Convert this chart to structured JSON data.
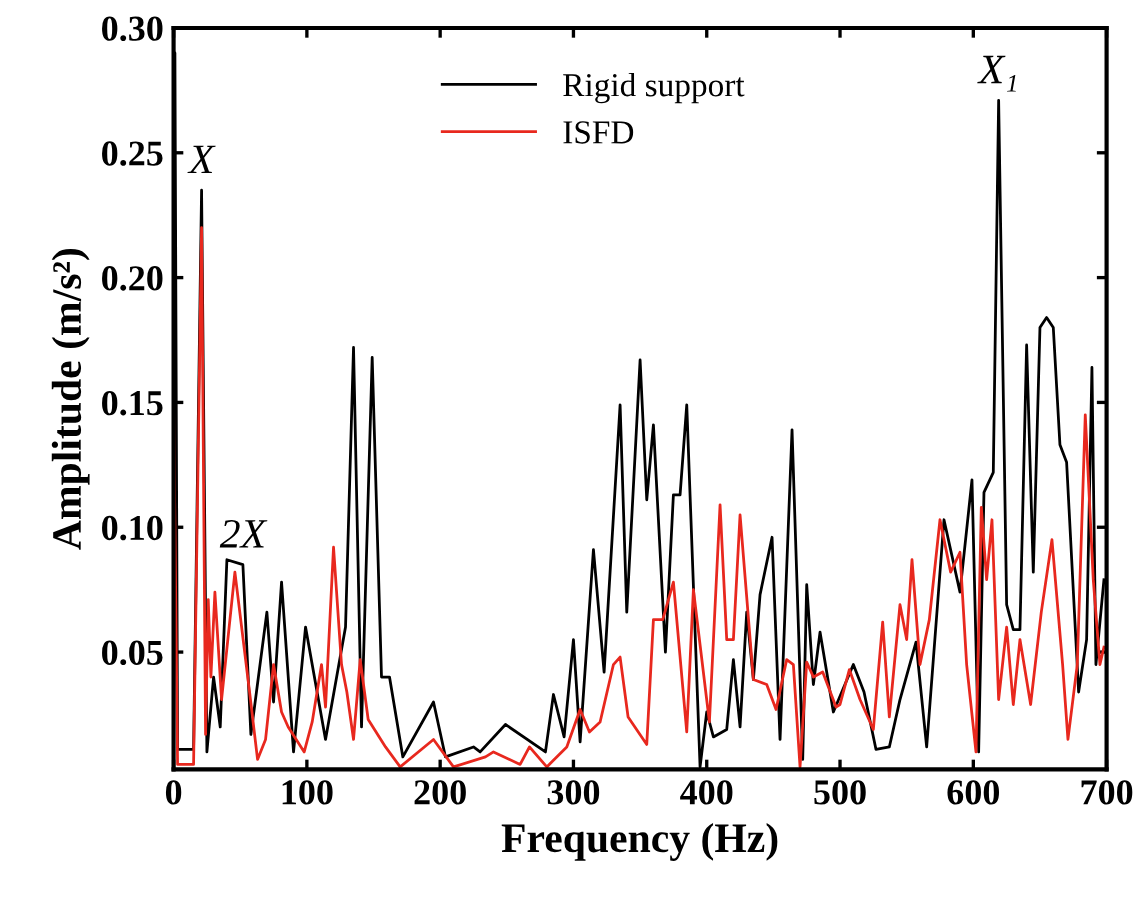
{
  "chart_data": {
    "type": "line",
    "xlabel": "Frequency (Hz)",
    "ylabel": "Amplitude (m/s²)",
    "xlim": [
      0,
      700
    ],
    "ylim": [
      0.003,
      0.3
    ],
    "xticks": [
      0,
      100,
      200,
      300,
      400,
      500,
      600,
      700
    ],
    "yticks": [
      0.05,
      {
        "value": 0.1,
        "label": "0.10"
      },
      0.15,
      {
        "value": 0.2,
        "label": "0.20"
      },
      0.25,
      {
        "value": 0.3,
        "label": "0.30"
      }
    ],
    "grid": false,
    "legend": "top",
    "marker": "none",
    "line_style": "solid",
    "annotations": [
      {
        "text": "X",
        "x": 21,
        "y": 0.235
      },
      {
        "text": "2X",
        "x": 52,
        "y": 0.085
      },
      {
        "text": "X₁",
        "x": 619,
        "y": 0.271
      }
    ],
    "series": [
      {
        "name": "Rigid support",
        "color": "#000000",
        "x": [
          0,
          1,
          3,
          15,
          21,
          25,
          30,
          35,
          40,
          52,
          58,
          70,
          75,
          81,
          90,
          99,
          114,
          129,
          135,
          141,
          149,
          156,
          162,
          172,
          195,
          204,
          225,
          230,
          249,
          279,
          285,
          293,
          300,
          305,
          315,
          323,
          335,
          340,
          350,
          355,
          360,
          369,
          375,
          380,
          385,
          395,
          400,
          405,
          415,
          420,
          425,
          430,
          435,
          440,
          449,
          455,
          464,
          472,
          475,
          480,
          485,
          495,
          510,
          518,
          527,
          537,
          545,
          557,
          565,
          578,
          590,
          599,
          604,
          608,
          615,
          619,
          625,
          630,
          635,
          640,
          645,
          650,
          655,
          660,
          665,
          670,
          679,
          685,
          689,
          692,
          698
        ],
        "values": [
          0.1,
          0.29,
          0.011,
          0.011,
          0.235,
          0.01,
          0.04,
          0.02,
          0.087,
          0.085,
          0.017,
          0.066,
          0.03,
          0.078,
          0.01,
          0.06,
          0.015,
          0.06,
          0.172,
          0.02,
          0.168,
          0.04,
          0.04,
          0.008,
          0.03,
          0.008,
          0.012,
          0.01,
          0.021,
          0.01,
          0.033,
          0.016,
          0.055,
          0.014,
          0.091,
          0.042,
          0.149,
          0.066,
          0.167,
          0.111,
          0.141,
          0.05,
          0.113,
          0.113,
          0.149,
          0.004,
          0.026,
          0.016,
          0.019,
          0.047,
          0.02,
          0.066,
          0.039,
          0.073,
          0.096,
          0.015,
          0.139,
          0.007,
          0.077,
          0.037,
          0.058,
          0.026,
          0.045,
          0.034,
          0.011,
          0.012,
          0.031,
          0.054,
          0.012,
          0.103,
          0.074,
          0.119,
          0.01,
          0.114,
          0.122,
          0.271,
          0.069,
          0.059,
          0.059,
          0.173,
          0.082,
          0.18,
          0.184,
          0.18,
          0.133,
          0.126,
          0.034,
          0.055,
          0.164,
          0.045,
          0.079
        ]
      },
      {
        "name": "ISFD",
        "color": "#e8281e",
        "x": [
          0,
          3,
          15,
          21,
          24,
          26,
          28,
          31,
          36,
          46,
          57,
          63,
          69,
          75,
          81,
          86,
          98,
          104,
          111,
          114,
          120,
          126,
          130,
          135,
          140,
          146,
          159,
          170,
          195,
          210,
          234,
          240,
          260,
          267,
          280,
          295,
          305,
          312,
          320,
          330,
          335,
          341,
          355,
          360,
          367,
          375,
          385,
          390,
          402,
          410,
          415,
          420,
          425,
          435,
          445,
          452,
          460,
          465,
          470,
          475,
          480,
          487,
          497,
          500,
          507,
          515,
          525,
          532,
          537,
          545,
          550,
          554,
          560,
          567,
          575,
          583,
          590,
          595,
          602,
          606,
          610,
          614,
          619,
          625,
          630,
          635,
          643,
          651,
          659,
          667,
          671,
          678,
          684,
          690,
          695,
          698
        ],
        "values": [
          0.148,
          0.005,
          0.005,
          0.22,
          0.017,
          0.071,
          0.04,
          0.074,
          0.031,
          0.082,
          0.034,
          0.007,
          0.015,
          0.045,
          0.026,
          0.02,
          0.01,
          0.022,
          0.045,
          0.028,
          0.092,
          0.045,
          0.034,
          0.015,
          0.047,
          0.023,
          0.012,
          0.004,
          0.015,
          0.004,
          0.008,
          0.01,
          0.005,
          0.012,
          0.004,
          0.012,
          0.027,
          0.018,
          0.022,
          0.045,
          0.048,
          0.024,
          0.013,
          0.063,
          0.063,
          0.078,
          0.018,
          0.075,
          0.022,
          0.109,
          0.055,
          0.055,
          0.105,
          0.039,
          0.037,
          0.027,
          0.047,
          0.045,
          0.004,
          0.046,
          0.04,
          0.042,
          0.028,
          0.029,
          0.043,
          0.031,
          0.019,
          0.062,
          0.024,
          0.069,
          0.055,
          0.087,
          0.045,
          0.063,
          0.103,
          0.082,
          0.09,
          0.045,
          0.01,
          0.108,
          0.079,
          0.103,
          0.031,
          0.06,
          0.029,
          0.055,
          0.029,
          0.066,
          0.095,
          0.045,
          0.015,
          0.045,
          0.145,
          0.079,
          0.045,
          0.052
        ]
      }
    ]
  }
}
